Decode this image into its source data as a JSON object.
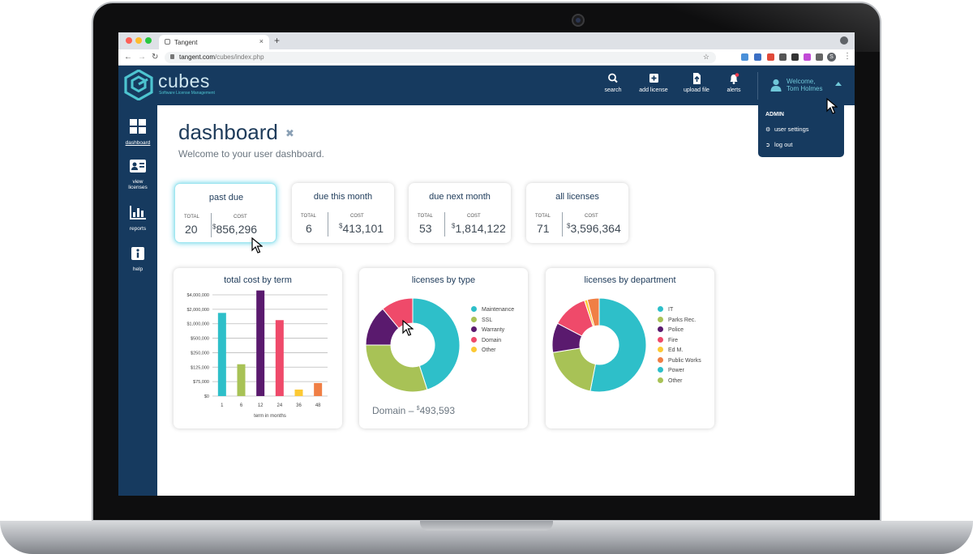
{
  "browser": {
    "tab_title": "Tangent",
    "tab_close": "×",
    "new_tab": "+",
    "url_host": "tangent.com",
    "url_path": "/cubes/index.php",
    "extension_badge": "S"
  },
  "brand": {
    "name": "cubes",
    "tagline": "Software License Management"
  },
  "header": {
    "actions": [
      {
        "label": "search",
        "icon": "search-icon"
      },
      {
        "label": "add license",
        "icon": "plus-square-icon"
      },
      {
        "label": "upload file",
        "icon": "file-upload-icon"
      },
      {
        "label": "alerts",
        "icon": "bell-icon"
      }
    ],
    "user": {
      "welcome": "Welcome,",
      "name": "Tom Holmes"
    }
  },
  "user_menu": {
    "title": "ADMIN",
    "items": [
      {
        "label": "user settings",
        "icon": "gear-icon"
      },
      {
        "label": "log out",
        "icon": "logout-icon"
      }
    ]
  },
  "sidebar": {
    "items": [
      {
        "label": "dashboard",
        "icon": "grid-icon",
        "active": true
      },
      {
        "label": "view licenses",
        "icon": "id-card-icon"
      },
      {
        "label": "reports",
        "icon": "bar-chart-icon"
      },
      {
        "label": "help",
        "icon": "info-icon"
      }
    ]
  },
  "page": {
    "title": "dashboard",
    "subtitle": "Welcome to your user dashboard."
  },
  "stats": [
    {
      "title": "past due",
      "total_label": "TOTAL",
      "total": "20",
      "cost_label": "COST",
      "cost_currency": "$",
      "cost": "856,296"
    },
    {
      "title": "due this month",
      "total_label": "TOTAL",
      "total": "6",
      "cost_label": "COST",
      "cost_currency": "$",
      "cost": "413,101"
    },
    {
      "title": "due next month",
      "total_label": "TOTAL",
      "total": "53",
      "cost_label": "COST",
      "cost_currency": "$",
      "cost": "1,814,122"
    },
    {
      "title": "all licenses",
      "total_label": "TOTAL",
      "total": "71",
      "cost_label": "COST",
      "cost_currency": "$",
      "cost": "3,596,364"
    }
  ],
  "chart_data": [
    {
      "type": "bar",
      "title": "total cost by term",
      "xlabel": "term in months",
      "ylabel": "",
      "categories": [
        "1",
        "6",
        "12",
        "24",
        "36",
        "48"
      ],
      "y_tick_labels": [
        "$4,000,000",
        "$2,000,000",
        "$1,000,000",
        "$500,000",
        "$250,000",
        "$125,000",
        "$75,000",
        "$0"
      ],
      "values_tick_position": [
        5.75,
        2.2,
        7.3,
        5.25,
        0.45,
        0.9
      ],
      "colors": [
        "#2ebfc9",
        "#a8c256",
        "#5a1a6e",
        "#ef4a6a",
        "#fcc934",
        "#f07f45"
      ],
      "grid": true
    },
    {
      "type": "pie",
      "donut": true,
      "title": "licenses by type",
      "labels": [
        "Maintenance",
        "SSL",
        "Warranty",
        "Domain",
        "Other"
      ],
      "values": [
        45,
        30,
        14,
        11,
        0
      ],
      "colors": [
        "#2ebfc9",
        "#a8c256",
        "#5a1a6e",
        "#ef4a6a",
        "#fcc934"
      ],
      "caption_label": "Domain",
      "caption_currency": "$",
      "caption_value": "493,593"
    },
    {
      "type": "pie",
      "donut": true,
      "title": "licenses by department",
      "labels": [
        "IT",
        "Parks Rec.",
        "Police",
        "Fire",
        "Ed M.",
        "Public Works",
        "Power",
        "Other"
      ],
      "values": [
        52,
        19,
        10,
        12,
        1,
        4,
        0,
        0
      ],
      "colors": [
        "#2ebfc9",
        "#a8c256",
        "#5a1a6e",
        "#ef4a6a",
        "#fcc934",
        "#f07f45",
        "#2ebfc9",
        "#a8c256"
      ]
    }
  ]
}
